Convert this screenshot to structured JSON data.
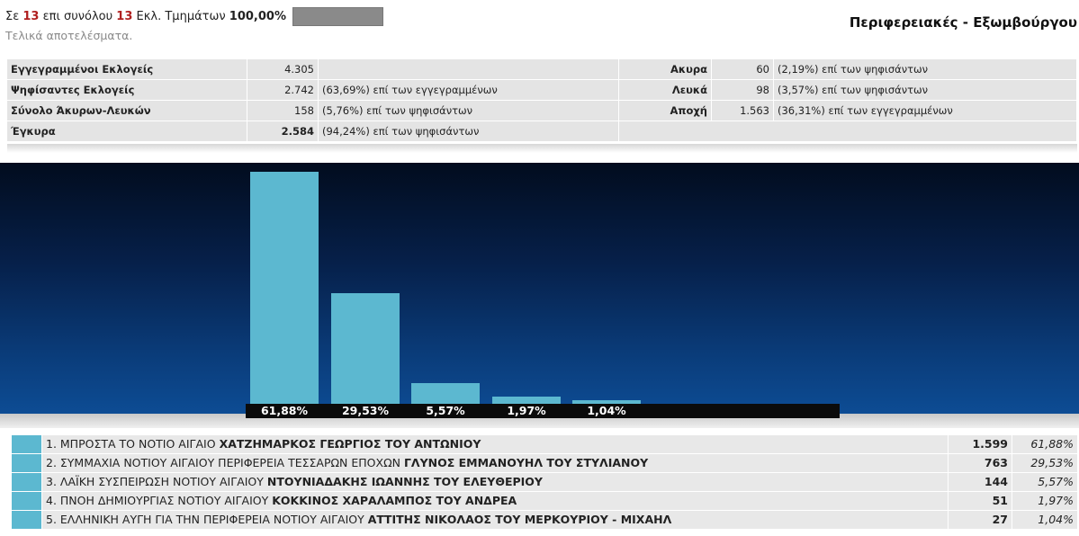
{
  "header": {
    "prefix": "Σε",
    "counted": "13",
    "middle": "επι συνόλου",
    "total": "13",
    "suffix": "Εκλ. Τμημάτων",
    "percent": "100,00%",
    "progress_fraction": 1.0,
    "subtitle": "Τελικά αποτελέσματα.",
    "region_title": "Περιφερειακές - Εξωμβούργου"
  },
  "stats": {
    "registered": {
      "label": "Εγγεγραμμένοι Εκλογείς",
      "value": "4.305",
      "pct": ""
    },
    "voted": {
      "label": "Ψηφίσαντες Εκλογείς",
      "value": "2.742",
      "pct": "(63,69%) επί των εγγεγραμμένων"
    },
    "invalid_blank": {
      "label": "Σύνολο Άκυρων-Λευκών",
      "value": "158",
      "pct": "(5,76%) επί των ψηφισάντων"
    },
    "valid": {
      "label": "Έγκυρα",
      "value": "2.584",
      "pct": "(94,24%) επί των ψηφισάντων"
    },
    "invalid": {
      "label": "Ακυρα",
      "value": "60",
      "pct": "(2,19%) επί των ψηφισάντων"
    },
    "blank": {
      "label": "Λευκά",
      "value": "98",
      "pct": "(3,57%) επί των ψηφισάντων"
    },
    "abstention": {
      "label": "Αποχή",
      "value": "1.563",
      "pct": "(36,31%) επί των εγγεγραμμένων"
    }
  },
  "chart_data": {
    "type": "bar",
    "categories": [
      "1",
      "2",
      "3",
      "4",
      "5"
    ],
    "values": [
      61.88,
      29.53,
      5.57,
      1.97,
      1.04
    ],
    "value_labels": [
      "61,88%",
      "29,53%",
      "5,57%",
      "1,97%",
      "1,04%"
    ],
    "ylim": [
      0,
      61.88
    ],
    "bar_color": "#5cb8d0"
  },
  "legend": [
    {
      "party": "1. ΜΠΡΟΣΤΑ ΤΟ ΝΟΤΙΟ ΑΙΓΑΙΟ",
      "candidate": "ΧΑΤΖΗΜΑΡΚΟΣ ΓΕΩΡΓΙΟΣ ΤΟΥ ΑΝΤΩΝΙΟΥ",
      "votes": "1.599",
      "pct": "61,88%"
    },
    {
      "party": "2. ΣΥΜΜΑΧΙΑ ΝΟΤΙΟΥ ΑΙΓΑΙΟΥ ΠΕΡΙΦΕΡΕΙΑ ΤΕΣΣΑΡΩΝ ΕΠΟΧΩΝ",
      "candidate": "ΓΛΥΝΟΣ ΕΜΜΑΝΟΥΗΛ ΤΟΥ ΣΤΥΛΙΑΝΟΥ",
      "votes": "763",
      "pct": "29,53%"
    },
    {
      "party": "3. ΛΑΪΚΗ ΣΥΣΠΕΙΡΩΣΗ ΝΟΤΙΟΥ ΑΙΓΑΙΟΥ",
      "candidate": "ΝΤΟΥΝΙΑΔΑΚΗΣ ΙΩΑΝΝΗΣ ΤΟΥ ΕΛΕΥΘΕΡΙΟΥ",
      "votes": "144",
      "pct": "5,57%"
    },
    {
      "party": "4. ΠΝΟΗ ΔΗΜΙΟΥΡΓΙΑΣ ΝΟΤΙΟΥ ΑΙΓΑΙΟΥ",
      "candidate": "ΚΟΚΚΙΝΟΣ ΧΑΡΑΛΑΜΠΟΣ ΤΟΥ ΑΝΔΡΕΑ",
      "votes": "51",
      "pct": "1,97%"
    },
    {
      "party": "5. ΕΛΛΗΝΙΚΗ ΑΥΓΗ ΓΙΑ ΤΗΝ ΠΕΡΙΦΕΡΕΙΑ ΝΟΤΙΟΥ ΑΙΓΑΙΟΥ",
      "candidate": "ΑΤΤΙΤΗΣ ΝΙΚΟΛΑΟΣ ΤΟΥ ΜΕΡΚΟΥΡΙΟΥ - ΜΙΧΑΗΛ",
      "votes": "27",
      "pct": "1,04%"
    }
  ]
}
